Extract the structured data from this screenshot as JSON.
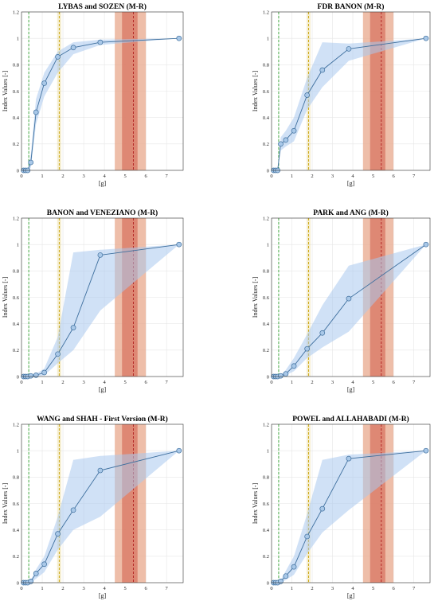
{
  "chart_data": [
    {
      "type": "line",
      "title": "LYBAS and SOZEN (M-R)",
      "xlabel": "[g]",
      "ylabel": "Index Values [-]",
      "xlim": [
        0,
        7.8
      ],
      "ylim": [
        0,
        1.2
      ],
      "xticks": [
        "0",
        "1",
        "2",
        "3",
        "4",
        "5",
        "6",
        "7"
      ],
      "yticks": [
        "0",
        "0.2",
        "0.4",
        "0.6",
        "0.8",
        "1",
        "1.2"
      ],
      "grid": true,
      "x": [
        0.1,
        0.2,
        0.3,
        0.45,
        0.7,
        1.1,
        1.75,
        2.5,
        3.8,
        7.6
      ],
      "y": [
        0,
        0,
        0,
        0.06,
        0.44,
        0.66,
        0.86,
        0.93,
        0.97,
        1.0
      ],
      "band_lower": [
        0,
        0,
        0,
        0.02,
        0.35,
        0.56,
        0.74,
        0.88,
        0.95,
        1.0
      ],
      "band_upper": [
        0,
        0,
        0,
        0.12,
        0.54,
        0.74,
        0.9,
        0.97,
        0.99,
        1.0
      ],
      "ref_lines": [
        {
          "x": 0.35,
          "color": "#3aa43a",
          "style": "dashed",
          "band": [
            0.33,
            0.37
          ]
        },
        {
          "x": 1.82,
          "color": "#c8a000",
          "style": "dashed",
          "band": [
            1.72,
            1.92
          ]
        },
        {
          "x": 5.4,
          "color": "#b02020",
          "style": "dashed",
          "band": [
            4.85,
            5.6
          ]
        }
      ],
      "shaded_regions": [
        {
          "range": [
            4.5,
            6.0
          ],
          "color": "#e8a88c"
        },
        {
          "range": [
            4.85,
            5.6
          ],
          "color": "#d97a66"
        }
      ]
    },
    {
      "type": "line",
      "title": "FDR BANON (M-R)",
      "xlabel": "[g]",
      "ylabel": "Index Values [-]",
      "xlim": [
        0,
        7.8
      ],
      "ylim": [
        0,
        1.2
      ],
      "xticks": [
        "0",
        "1",
        "2",
        "3",
        "4",
        "5",
        "6",
        "7"
      ],
      "yticks": [
        "0",
        "0.2",
        "0.4",
        "0.6",
        "0.8",
        "1",
        "1.2"
      ],
      "grid": true,
      "x": [
        0.1,
        0.2,
        0.3,
        0.45,
        0.7,
        1.1,
        1.75,
        2.5,
        3.8,
        7.6
      ],
      "y": [
        0,
        0,
        0,
        0.2,
        0.23,
        0.3,
        0.57,
        0.76,
        0.92,
        1.0
      ],
      "band_lower": [
        0,
        0,
        0,
        0.15,
        0.18,
        0.22,
        0.46,
        0.63,
        0.83,
        1.0
      ],
      "band_upper": [
        0,
        0,
        0,
        0.25,
        0.3,
        0.4,
        0.7,
        0.97,
        0.96,
        1.0
      ],
      "ref_lines": [
        {
          "x": 0.35,
          "color": "#3aa43a",
          "style": "dashed",
          "band": [
            0.33,
            0.37
          ]
        },
        {
          "x": 1.82,
          "color": "#c8a000",
          "style": "dashed",
          "band": [
            1.72,
            1.92
          ]
        },
        {
          "x": 5.4,
          "color": "#b02020",
          "style": "dashed",
          "band": [
            4.85,
            5.6
          ]
        }
      ],
      "shaded_regions": [
        {
          "range": [
            4.5,
            6.0
          ],
          "color": "#e8a88c"
        },
        {
          "range": [
            4.85,
            5.6
          ],
          "color": "#d97a66"
        }
      ]
    },
    {
      "type": "line",
      "title": "BANON and VENEZIANO (M-R)",
      "xlabel": "[g]",
      "ylabel": "Index Values [-]",
      "xlim": [
        0,
        7.8
      ],
      "ylim": [
        0,
        1.2
      ],
      "xticks": [
        "0",
        "1",
        "2",
        "3",
        "4",
        "5",
        "6",
        "7"
      ],
      "yticks": [
        "0",
        "0.2",
        "0.4",
        "0.6",
        "0.8",
        "1",
        "1.2"
      ],
      "grid": true,
      "x": [
        0.1,
        0.2,
        0.3,
        0.45,
        0.7,
        1.1,
        1.75,
        2.5,
        3.8,
        7.6
      ],
      "y": [
        0,
        0,
        0,
        0.005,
        0.01,
        0.03,
        0.17,
        0.37,
        0.92,
        1.0
      ],
      "band_lower": [
        0,
        0,
        0,
        0,
        0,
        0.01,
        0.1,
        0.2,
        0.5,
        1.0
      ],
      "band_upper": [
        0,
        0,
        0,
        0.01,
        0.02,
        0.06,
        0.3,
        0.94,
        0.96,
        1.0
      ],
      "ref_lines": [
        {
          "x": 0.35,
          "color": "#3aa43a",
          "style": "dashed",
          "band": [
            0.33,
            0.37
          ]
        },
        {
          "x": 1.82,
          "color": "#c8a000",
          "style": "dashed",
          "band": [
            1.72,
            1.92
          ]
        },
        {
          "x": 5.4,
          "color": "#b02020",
          "style": "dashed",
          "band": [
            4.85,
            5.6
          ]
        }
      ],
      "shaded_regions": [
        {
          "range": [
            4.5,
            6.0
          ],
          "color": "#e8a88c"
        },
        {
          "range": [
            4.85,
            5.6
          ],
          "color": "#d97a66"
        }
      ]
    },
    {
      "type": "line",
      "title": "PARK and ANG (M-R)",
      "xlabel": "[g]",
      "ylabel": "Index Values [-]",
      "xlim": [
        0,
        7.8
      ],
      "ylim": [
        0,
        1.2
      ],
      "xticks": [
        "0",
        "1",
        "2",
        "3",
        "4",
        "5",
        "6",
        "7"
      ],
      "yticks": [
        "0",
        "0.2",
        "0.4",
        "0.6",
        "0.8",
        "1",
        "1.2"
      ],
      "grid": true,
      "x": [
        0.1,
        0.2,
        0.3,
        0.45,
        0.7,
        1.1,
        1.75,
        2.5,
        3.8,
        7.6
      ],
      "y": [
        0,
        0,
        0,
        0.005,
        0.02,
        0.08,
        0.21,
        0.33,
        0.59,
        1.0
      ],
      "band_lower": [
        0,
        0,
        0,
        0,
        0.01,
        0.04,
        0.14,
        0.22,
        0.34,
        1.0
      ],
      "band_upper": [
        0,
        0,
        0,
        0.01,
        0.05,
        0.14,
        0.32,
        0.54,
        0.84,
        1.0
      ],
      "ref_lines": [
        {
          "x": 0.35,
          "color": "#3aa43a",
          "style": "dashed",
          "band": [
            0.33,
            0.37
          ]
        },
        {
          "x": 1.82,
          "color": "#c8a000",
          "style": "dashed",
          "band": [
            1.72,
            1.92
          ]
        },
        {
          "x": 5.4,
          "color": "#b02020",
          "style": "dashed",
          "band": [
            4.85,
            5.6
          ]
        }
      ],
      "shaded_regions": [
        {
          "range": [
            4.5,
            6.0
          ],
          "color": "#e8a88c"
        },
        {
          "range": [
            4.85,
            5.6
          ],
          "color": "#d97a66"
        }
      ]
    },
    {
      "type": "line",
      "title": "WANG and SHAH - First Version (M-R)",
      "xlabel": "[g]",
      "ylabel": "Index Values [-]",
      "xlim": [
        0,
        7.8
      ],
      "ylim": [
        0,
        1.2
      ],
      "xticks": [
        "0",
        "1",
        "2",
        "3",
        "4",
        "5",
        "6",
        "7"
      ],
      "yticks": [
        "0",
        "0.2",
        "0.4",
        "0.6",
        "0.8",
        "1",
        "1.2"
      ],
      "grid": true,
      "x": [
        0.1,
        0.2,
        0.3,
        0.45,
        0.7,
        1.1,
        1.75,
        2.5,
        3.8,
        7.6
      ],
      "y": [
        0,
        0,
        0,
        0.01,
        0.07,
        0.14,
        0.37,
        0.55,
        0.85,
        1.0
      ],
      "band_lower": [
        0,
        0,
        0,
        0,
        0.03,
        0.08,
        0.25,
        0.4,
        0.5,
        1.0
      ],
      "band_upper": [
        0,
        0,
        0,
        0.02,
        0.1,
        0.2,
        0.5,
        0.93,
        0.96,
        1.0
      ],
      "ref_lines": [
        {
          "x": 0.35,
          "color": "#3aa43a",
          "style": "dashed",
          "band": [
            0.33,
            0.37
          ]
        },
        {
          "x": 1.82,
          "color": "#c8a000",
          "style": "dashed",
          "band": [
            1.72,
            1.92
          ]
        },
        {
          "x": 5.4,
          "color": "#b02020",
          "style": "dashed",
          "band": [
            4.85,
            5.6
          ]
        }
      ],
      "shaded_regions": [
        {
          "range": [
            4.5,
            6.0
          ],
          "color": "#e8a88c"
        },
        {
          "range": [
            4.85,
            5.6
          ],
          "color": "#d97a66"
        }
      ]
    },
    {
      "type": "line",
      "title": "POWEL and ALLAHABADI (M-R)",
      "xlabel": "[g]",
      "ylabel": "Index Values [-]",
      "xlim": [
        0,
        7.8
      ],
      "ylim": [
        0,
        1.2
      ],
      "xticks": [
        "0",
        "1",
        "2",
        "3",
        "4",
        "5",
        "6",
        "7"
      ],
      "yticks": [
        "0",
        "0.2",
        "0.4",
        "0.6",
        "0.8",
        "1",
        "1.2"
      ],
      "grid": true,
      "x": [
        0.1,
        0.2,
        0.3,
        0.45,
        0.7,
        1.1,
        1.75,
        2.5,
        3.8,
        7.6
      ],
      "y": [
        0,
        0,
        0,
        0.01,
        0.05,
        0.12,
        0.35,
        0.56,
        0.94,
        1.0
      ],
      "band_lower": [
        0,
        0,
        0,
        0,
        0.02,
        0.06,
        0.22,
        0.38,
        0.55,
        1.0
      ],
      "band_upper": [
        0,
        0,
        0,
        0.02,
        0.09,
        0.2,
        0.52,
        0.93,
        0.97,
        1.0
      ],
      "ref_lines": [
        {
          "x": 0.35,
          "color": "#3aa43a",
          "style": "dashed",
          "band": [
            0.33,
            0.37
          ]
        },
        {
          "x": 1.82,
          "color": "#c8a000",
          "style": "dashed",
          "band": [
            1.72,
            1.92
          ]
        },
        {
          "x": 5.4,
          "color": "#b02020",
          "style": "dashed",
          "band": [
            4.85,
            5.6
          ]
        }
      ],
      "shaded_regions": [
        {
          "range": [
            4.5,
            6.0
          ],
          "color": "#e8a88c"
        },
        {
          "range": [
            4.85,
            5.6
          ],
          "color": "#d97a66"
        }
      ]
    }
  ],
  "colors": {
    "series_line": "#3e6f9e",
    "series_marker_fill": "#a9c8e8",
    "band_fill": "#a9c8ee",
    "grid": "#e6e6e6",
    "axis": "#333333"
  }
}
